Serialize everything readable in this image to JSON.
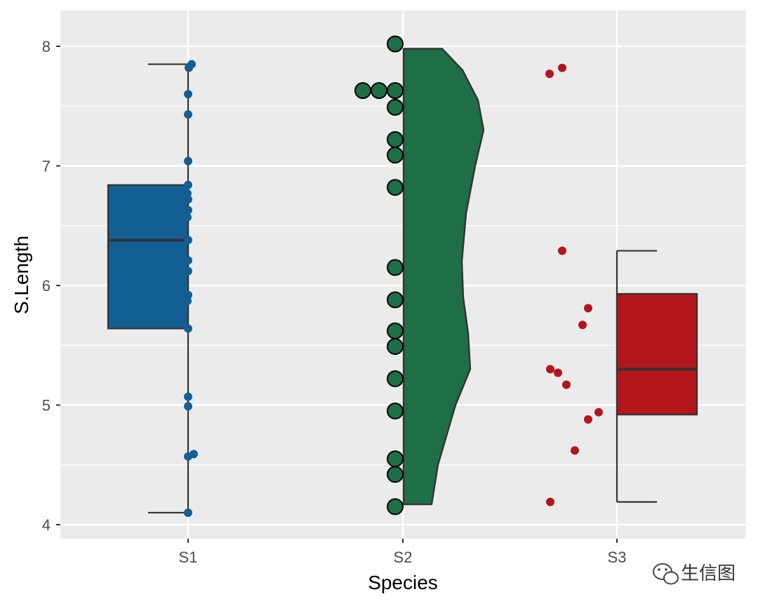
{
  "chart_data": {
    "type": "box-violin-dotplot",
    "xlabel": "Species",
    "ylabel": "S.Length",
    "ylim": [
      3.9,
      8.3
    ],
    "yticks": [
      4,
      5,
      6,
      7,
      8
    ],
    "categories": [
      "S1",
      "S2",
      "S3"
    ],
    "grid": true,
    "colors": {
      "panel": "#EBEBEB",
      "grid": "#FFFFFF",
      "S1": "#135F93",
      "S2": "#1E6E48",
      "S3": "#B3151C",
      "outline": "#333333"
    },
    "groups": [
      {
        "name": "S1",
        "box": {
          "whisker_low": 4.1,
          "q1": 5.64,
          "median": 6.38,
          "q3": 6.84,
          "whisker_high": 7.85
        },
        "points": [
          7.85,
          7.82,
          7.6,
          7.43,
          7.04,
          6.84,
          6.77,
          6.72,
          6.63,
          6.57,
          6.38,
          6.21,
          6.12,
          5.92,
          5.87,
          5.64,
          5.07,
          4.99,
          4.59,
          4.57,
          4.1
        ]
      },
      {
        "name": "S2",
        "violin": {
          "min": 4.17,
          "max": 7.98
        },
        "points": [
          8.02,
          7.63,
          7.63,
          7.63,
          7.49,
          7.22,
          7.09,
          6.82,
          6.15,
          5.88,
          5.62,
          5.49,
          5.22,
          4.95,
          4.55,
          4.42,
          4.15
        ]
      },
      {
        "name": "S3",
        "box": {
          "whisker_low": 4.19,
          "q1": 4.92,
          "median": 5.3,
          "q3": 5.93,
          "whisker_high": 6.29
        },
        "points": [
          7.82,
          7.77,
          6.29,
          5.81,
          5.67,
          5.3,
          5.27,
          5.17,
          4.94,
          4.88,
          4.62,
          4.19
        ]
      }
    ]
  },
  "watermark": {
    "text": "生信图",
    "icon": "wechat-icon"
  }
}
